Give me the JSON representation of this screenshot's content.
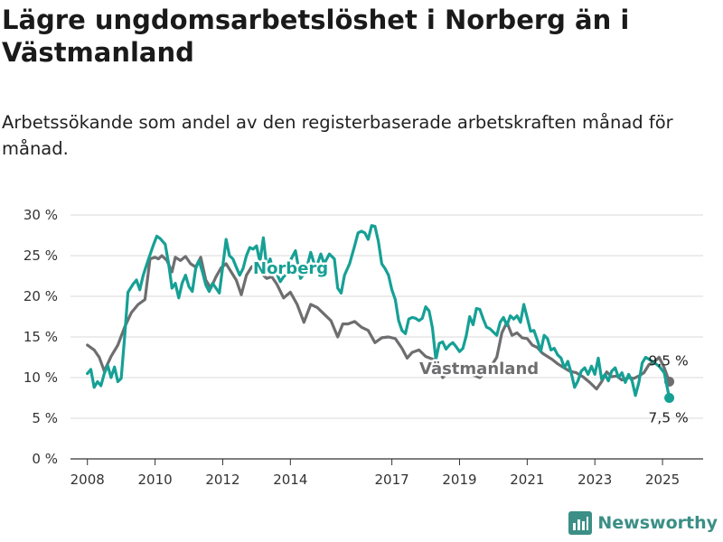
{
  "title": "Lägre ungdomsarbetslöshet i Norberg än i Västmanland",
  "subtitle": "Arbetssökande som andel av den registerbaserade arbetskraften månad för månad.",
  "brand": "Newsworthy",
  "chart_data": {
    "type": "line",
    "xlabel": "",
    "ylabel": "",
    "ylim": [
      0,
      30
    ],
    "yticks": [
      0,
      5,
      10,
      15,
      20,
      25,
      30
    ],
    "ytick_labels": [
      "0 %",
      "5 %",
      "10 %",
      "15 %",
      "20 %",
      "25 %",
      "30 %"
    ],
    "xlim": [
      2007.5,
      2026.2
    ],
    "xticks": [
      2008,
      2010,
      2012,
      2014,
      2017,
      2019,
      2021,
      2023,
      2025
    ],
    "xtick_labels": [
      "2008",
      "2010",
      "2012",
      "2014",
      "2017",
      "2019",
      "2021",
      "2023",
      "2025"
    ],
    "grid": "horizontal",
    "series": [
      {
        "name": "Västmanland",
        "color": "#6e6e70",
        "end_label": "9,5 %",
        "points": [
          [
            2008.0,
            14.0
          ],
          [
            2008.2,
            13.4
          ],
          [
            2008.35,
            12.5
          ],
          [
            2008.5,
            10.8
          ],
          [
            2008.7,
            12.6
          ],
          [
            2008.9,
            14.0
          ],
          [
            2009.1,
            16.2
          ],
          [
            2009.3,
            18.0
          ],
          [
            2009.5,
            19.0
          ],
          [
            2009.7,
            19.6
          ],
          [
            2009.85,
            24.6
          ],
          [
            2010.0,
            24.8
          ],
          [
            2010.1,
            24.6
          ],
          [
            2010.2,
            25.0
          ],
          [
            2010.35,
            24.4
          ],
          [
            2010.5,
            23.0
          ],
          [
            2010.6,
            24.8
          ],
          [
            2010.75,
            24.4
          ],
          [
            2010.9,
            24.9
          ],
          [
            2011.05,
            24.0
          ],
          [
            2011.2,
            23.6
          ],
          [
            2011.35,
            24.8
          ],
          [
            2011.5,
            22.0
          ],
          [
            2011.65,
            21.0
          ],
          [
            2011.8,
            22.4
          ],
          [
            2011.95,
            23.5
          ],
          [
            2012.1,
            24.0
          ],
          [
            2012.25,
            23.0
          ],
          [
            2012.4,
            22.0
          ],
          [
            2012.55,
            20.2
          ],
          [
            2012.7,
            22.6
          ],
          [
            2012.85,
            23.6
          ],
          [
            2013.0,
            24.0
          ],
          [
            2013.15,
            22.8
          ],
          [
            2013.3,
            22.2
          ],
          [
            2013.45,
            22.4
          ],
          [
            2013.6,
            21.5
          ],
          [
            2013.8,
            19.8
          ],
          [
            2014.0,
            20.5
          ],
          [
            2014.2,
            19.0
          ],
          [
            2014.4,
            16.8
          ],
          [
            2014.6,
            19.0
          ],
          [
            2014.8,
            18.6
          ],
          [
            2015.0,
            17.8
          ],
          [
            2015.2,
            17.0
          ],
          [
            2015.4,
            15.0
          ],
          [
            2015.55,
            16.6
          ],
          [
            2015.7,
            16.6
          ],
          [
            2015.9,
            16.9
          ],
          [
            2016.1,
            16.2
          ],
          [
            2016.3,
            15.8
          ],
          [
            2016.5,
            14.3
          ],
          [
            2016.7,
            14.9
          ],
          [
            2016.9,
            15.0
          ],
          [
            2017.1,
            14.8
          ],
          [
            2017.3,
            13.6
          ],
          [
            2017.45,
            12.4
          ],
          [
            2017.6,
            13.1
          ],
          [
            2017.8,
            13.4
          ],
          [
            2018.0,
            12.6
          ],
          [
            2018.25,
            12.2
          ],
          [
            2018.5,
            10.0
          ],
          [
            2018.75,
            11.0
          ],
          [
            2019.0,
            10.4
          ],
          [
            2019.3,
            10.5
          ],
          [
            2019.6,
            10.0
          ],
          [
            2019.9,
            11.2
          ],
          [
            2020.1,
            12.5
          ],
          [
            2020.25,
            15.5
          ],
          [
            2020.4,
            16.8
          ],
          [
            2020.55,
            15.2
          ],
          [
            2020.7,
            15.5
          ],
          [
            2020.85,
            14.9
          ],
          [
            2021.0,
            14.8
          ],
          [
            2021.15,
            14.0
          ],
          [
            2021.3,
            13.7
          ],
          [
            2021.45,
            13.0
          ],
          [
            2021.6,
            12.6
          ],
          [
            2021.75,
            12.2
          ],
          [
            2021.9,
            11.7
          ],
          [
            2022.05,
            11.3
          ],
          [
            2022.25,
            10.8
          ],
          [
            2022.45,
            10.6
          ],
          [
            2022.65,
            10.1
          ],
          [
            2022.85,
            9.4
          ],
          [
            2023.05,
            8.6
          ],
          [
            2023.2,
            9.5
          ],
          [
            2023.35,
            10.7
          ],
          [
            2023.5,
            10.1
          ],
          [
            2023.65,
            10.2
          ],
          [
            2023.8,
            9.7
          ],
          [
            2024.0,
            10.0
          ],
          [
            2024.15,
            9.9
          ],
          [
            2024.3,
            10.2
          ],
          [
            2024.45,
            10.6
          ],
          [
            2024.6,
            11.6
          ],
          [
            2024.75,
            11.9
          ],
          [
            2024.9,
            12.5
          ],
          [
            2025.05,
            11.2
          ],
          [
            2025.2,
            9.5
          ]
        ]
      },
      {
        "name": "Norberg",
        "color": "#16a095",
        "end_label": "7,5 %",
        "points": [
          [
            2008.0,
            10.5
          ],
          [
            2008.1,
            11.0
          ],
          [
            2008.2,
            8.8
          ],
          [
            2008.3,
            9.5
          ],
          [
            2008.4,
            9.0
          ],
          [
            2008.5,
            10.5
          ],
          [
            2008.6,
            11.5
          ],
          [
            2008.7,
            10.0
          ],
          [
            2008.8,
            11.3
          ],
          [
            2008.9,
            9.5
          ],
          [
            2009.0,
            9.9
          ],
          [
            2009.1,
            15.0
          ],
          [
            2009.2,
            20.5
          ],
          [
            2009.35,
            21.5
          ],
          [
            2009.45,
            22.0
          ],
          [
            2009.55,
            20.8
          ],
          [
            2009.65,
            22.6
          ],
          [
            2009.8,
            24.5
          ],
          [
            2009.95,
            26.3
          ],
          [
            2010.05,
            27.4
          ],
          [
            2010.15,
            27.1
          ],
          [
            2010.3,
            26.4
          ],
          [
            2010.4,
            24.0
          ],
          [
            2010.5,
            21.0
          ],
          [
            2010.6,
            21.6
          ],
          [
            2010.7,
            19.8
          ],
          [
            2010.8,
            21.6
          ],
          [
            2010.9,
            22.6
          ],
          [
            2011.0,
            21.2
          ],
          [
            2011.1,
            20.6
          ],
          [
            2011.2,
            23.4
          ],
          [
            2011.3,
            24.4
          ],
          [
            2011.4,
            23.0
          ],
          [
            2011.5,
            21.4
          ],
          [
            2011.6,
            20.6
          ],
          [
            2011.7,
            21.6
          ],
          [
            2011.8,
            21.0
          ],
          [
            2011.9,
            20.4
          ],
          [
            2012.0,
            23.6
          ],
          [
            2012.1,
            27.0
          ],
          [
            2012.2,
            25.0
          ],
          [
            2012.3,
            24.6
          ],
          [
            2012.4,
            23.6
          ],
          [
            2012.5,
            22.6
          ],
          [
            2012.6,
            23.4
          ],
          [
            2012.7,
            25.0
          ],
          [
            2012.8,
            26.0
          ],
          [
            2012.9,
            25.8
          ],
          [
            2013.0,
            26.2
          ],
          [
            2013.1,
            24.2
          ],
          [
            2013.2,
            27.2
          ],
          [
            2013.3,
            23.6
          ],
          [
            2013.4,
            24.6
          ],
          [
            2013.5,
            23.0
          ],
          [
            2013.6,
            22.8
          ],
          [
            2013.7,
            21.8
          ],
          [
            2013.8,
            22.4
          ],
          [
            2013.9,
            22.8
          ],
          [
            2014.0,
            24.4
          ],
          [
            2014.15,
            25.6
          ],
          [
            2014.3,
            22.2
          ],
          [
            2014.45,
            23.0
          ],
          [
            2014.6,
            25.4
          ],
          [
            2014.75,
            23.4
          ],
          [
            2014.9,
            25.2
          ],
          [
            2015.0,
            24.0
          ],
          [
            2015.15,
            25.2
          ],
          [
            2015.3,
            24.6
          ],
          [
            2015.4,
            21.0
          ],
          [
            2015.5,
            20.4
          ],
          [
            2015.6,
            22.6
          ],
          [
            2015.75,
            24.0
          ],
          [
            2015.9,
            26.2
          ],
          [
            2016.0,
            27.8
          ],
          [
            2016.1,
            28.0
          ],
          [
            2016.2,
            27.8
          ],
          [
            2016.3,
            27.0
          ],
          [
            2016.4,
            28.7
          ],
          [
            2016.5,
            28.6
          ],
          [
            2016.6,
            26.8
          ],
          [
            2016.7,
            24.0
          ],
          [
            2016.8,
            23.4
          ],
          [
            2016.9,
            22.6
          ],
          [
            2017.0,
            20.8
          ],
          [
            2017.1,
            19.6
          ],
          [
            2017.2,
            17.0
          ],
          [
            2017.3,
            15.8
          ],
          [
            2017.4,
            15.4
          ],
          [
            2017.5,
            17.2
          ],
          [
            2017.6,
            17.4
          ],
          [
            2017.7,
            17.3
          ],
          [
            2017.8,
            17.0
          ],
          [
            2017.9,
            17.3
          ],
          [
            2018.0,
            18.7
          ],
          [
            2018.1,
            18.2
          ],
          [
            2018.2,
            16.1
          ],
          [
            2018.3,
            12.2
          ],
          [
            2018.4,
            14.2
          ],
          [
            2018.5,
            14.4
          ],
          [
            2018.6,
            13.5
          ],
          [
            2018.7,
            14.0
          ],
          [
            2018.8,
            14.3
          ],
          [
            2018.9,
            13.8
          ],
          [
            2019.0,
            13.2
          ],
          [
            2019.1,
            13.6
          ],
          [
            2019.2,
            15.2
          ],
          [
            2019.3,
            17.5
          ],
          [
            2019.4,
            16.5
          ],
          [
            2019.5,
            18.5
          ],
          [
            2019.6,
            18.4
          ],
          [
            2019.7,
            17.2
          ],
          [
            2019.8,
            16.2
          ],
          [
            2019.9,
            16.0
          ],
          [
            2020.0,
            15.6
          ],
          [
            2020.1,
            15.2
          ],
          [
            2020.2,
            16.8
          ],
          [
            2020.3,
            17.4
          ],
          [
            2020.4,
            16.4
          ],
          [
            2020.5,
            17.6
          ],
          [
            2020.6,
            17.2
          ],
          [
            2020.7,
            17.6
          ],
          [
            2020.8,
            16.8
          ],
          [
            2020.9,
            19.0
          ],
          [
            2021.0,
            17.4
          ],
          [
            2021.1,
            15.7
          ],
          [
            2021.2,
            15.8
          ],
          [
            2021.3,
            14.6
          ],
          [
            2021.4,
            13.2
          ],
          [
            2021.5,
            15.2
          ],
          [
            2021.6,
            14.8
          ],
          [
            2021.7,
            13.4
          ],
          [
            2021.8,
            13.6
          ],
          [
            2021.9,
            12.8
          ],
          [
            2022.0,
            12.4
          ],
          [
            2022.1,
            11.2
          ],
          [
            2022.2,
            12.0
          ],
          [
            2022.3,
            10.6
          ],
          [
            2022.4,
            8.8
          ],
          [
            2022.5,
            9.6
          ],
          [
            2022.6,
            10.8
          ],
          [
            2022.7,
            11.2
          ],
          [
            2022.8,
            10.4
          ],
          [
            2022.9,
            11.4
          ],
          [
            2023.0,
            10.4
          ],
          [
            2023.1,
            12.4
          ],
          [
            2023.2,
            9.8
          ],
          [
            2023.3,
            10.4
          ],
          [
            2023.4,
            9.6
          ],
          [
            2023.5,
            10.8
          ],
          [
            2023.6,
            11.2
          ],
          [
            2023.7,
            10.0
          ],
          [
            2023.8,
            10.6
          ],
          [
            2023.9,
            9.4
          ],
          [
            2024.0,
            10.4
          ],
          [
            2024.1,
            9.6
          ],
          [
            2024.2,
            7.8
          ],
          [
            2024.3,
            9.4
          ],
          [
            2024.4,
            11.8
          ],
          [
            2024.5,
            12.5
          ],
          [
            2024.7,
            12.0
          ],
          [
            2024.9,
            11.4
          ],
          [
            2025.05,
            10.6
          ],
          [
            2025.2,
            7.5
          ]
        ]
      }
    ]
  }
}
